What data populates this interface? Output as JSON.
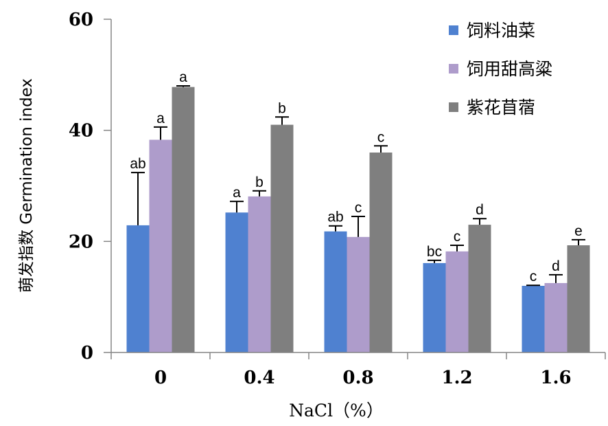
{
  "chart_data": {
    "type": "bar",
    "title": "",
    "xlabel": "NaCl（%）",
    "ylabel": "萌发指数 Germination index",
    "ylim": [
      0,
      60
    ],
    "yticks": [
      0,
      20,
      40,
      60
    ],
    "categories": [
      "0",
      "0.4",
      "0.8",
      "1.2",
      "1.6"
    ],
    "grid": false,
    "legend_position": "top-right",
    "series": [
      {
        "name": "饲料油菜",
        "color": "#4F81D0",
        "values": [
          22.9,
          25.2,
          21.8,
          16.1,
          12.0
        ],
        "errors": [
          9.5,
          2.0,
          1.0,
          0.5,
          0.1
        ],
        "labels": [
          "ab",
          "a",
          "ab",
          "bc",
          "c"
        ]
      },
      {
        "name": "饲用甜高粱",
        "color": "#AE9CCB",
        "values": [
          38.3,
          28.1,
          20.8,
          18.2,
          12.5
        ],
        "errors": [
          2.3,
          1.0,
          3.7,
          1.1,
          1.5
        ],
        "labels": [
          "a",
          "b",
          "c",
          "c",
          "d"
        ]
      },
      {
        "name": "紫花苜蓿",
        "color": "#7F7F7F",
        "values": [
          47.8,
          41.0,
          36.0,
          23.0,
          19.3
        ],
        "errors": [
          0.2,
          1.4,
          1.2,
          1.1,
          1.0
        ],
        "labels": [
          "a",
          "b",
          "c",
          "d",
          "e"
        ]
      }
    ]
  }
}
